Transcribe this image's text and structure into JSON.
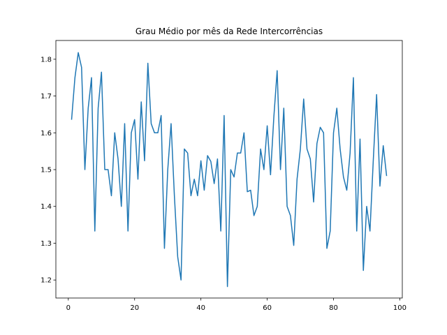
{
  "chart_data": {
    "type": "line",
    "title": "Grau Médio por mês da Rede Intercorrências",
    "xlabel": "",
    "ylabel": "",
    "xlim": [
      -3.75,
      100.75
    ],
    "ylim": [
      1.151,
      1.851
    ],
    "xticks": [
      0,
      20,
      40,
      60,
      80,
      100
    ],
    "yticks": [
      1.2,
      1.3,
      1.4,
      1.5,
      1.6,
      1.7,
      1.8
    ],
    "xtick_labels": [
      "0",
      "20",
      "40",
      "60",
      "80",
      "100"
    ],
    "ytick_labels": [
      "1.2",
      "1.3",
      "1.4",
      "1.5",
      "1.6",
      "1.7",
      "1.8"
    ],
    "grid": false,
    "line_color": "#1f77b4",
    "series": [
      {
        "x": [
          1,
          2,
          3,
          4,
          5,
          6,
          7,
          8,
          9,
          10,
          11,
          12,
          13,
          14,
          15,
          16,
          17,
          18,
          19,
          20,
          21,
          22,
          23,
          24,
          25,
          26,
          27,
          28,
          29,
          30,
          31,
          32,
          33,
          34,
          35,
          36,
          37,
          38,
          39,
          40,
          41,
          42,
          43,
          44,
          45,
          46,
          47,
          48,
          49,
          50,
          51,
          52,
          53,
          54,
          55,
          56,
          57,
          58,
          59,
          60,
          61,
          62,
          63,
          64,
          65,
          66,
          67,
          68,
          69,
          70,
          71,
          72,
          73,
          74,
          75,
          76,
          77,
          78,
          79,
          80,
          81,
          82,
          83,
          84,
          85,
          86,
          87,
          88,
          89,
          90,
          91,
          92,
          93,
          94,
          95,
          96
        ],
        "values": [
          1.637,
          1.75,
          1.818,
          1.778,
          1.5,
          1.667,
          1.75,
          1.333,
          1.667,
          1.765,
          1.5,
          1.5,
          1.429,
          1.6,
          1.529,
          1.4,
          1.625,
          1.333,
          1.6,
          1.636,
          1.474,
          1.684,
          1.524,
          1.789,
          1.625,
          1.6,
          1.6,
          1.647,
          1.286,
          1.5,
          1.625,
          1.429,
          1.263,
          1.2,
          1.556,
          1.545,
          1.429,
          1.474,
          1.429,
          1.524,
          1.444,
          1.538,
          1.522,
          1.462,
          1.529,
          1.333,
          1.647,
          1.182,
          1.5,
          1.48,
          1.545,
          1.545,
          1.6,
          1.44,
          1.444,
          1.375,
          1.4,
          1.556,
          1.5,
          1.619,
          1.486,
          1.643,
          1.769,
          1.5,
          1.667,
          1.4,
          1.375,
          1.294,
          1.474,
          1.556,
          1.692,
          1.556,
          1.529,
          1.412,
          1.571,
          1.615,
          1.6,
          1.286,
          1.333,
          1.6,
          1.667,
          1.556,
          1.48,
          1.444,
          1.545,
          1.75,
          1.333,
          1.583,
          1.226,
          1.4,
          1.333,
          1.526,
          1.704,
          1.455,
          1.565,
          1.484
        ]
      }
    ]
  }
}
